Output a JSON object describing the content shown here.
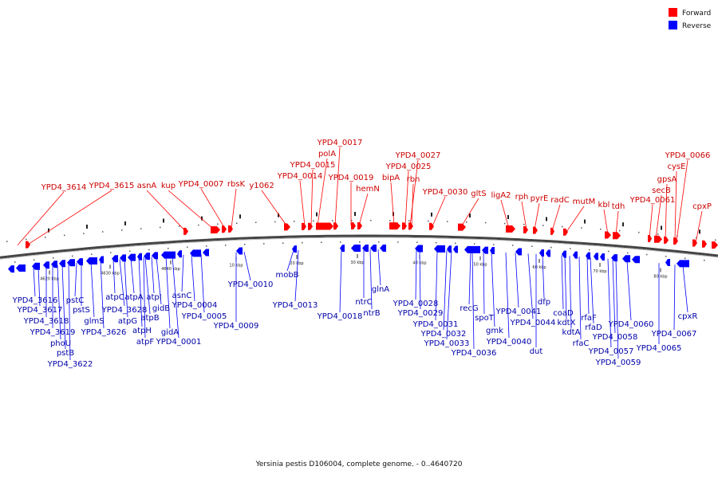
{
  "caption": "Yersinia pestis D106004, complete genome. - 0..4640720",
  "legend": [
    {
      "label": "Forward",
      "color": "#ff0000"
    },
    {
      "label": "Reverse",
      "color": "#0000ff"
    }
  ],
  "colors": {
    "forward": "#ff0000",
    "reverse": "#0000ff",
    "backbone": "#777777",
    "forward_label": "#cc0000",
    "reverse_label": "#0000aa"
  },
  "scale_ticks": [
    "4620 kbp",
    "4630 kbp",
    "4640 kbp",
    "10 kbp",
    "20 kbp",
    "30 kbp",
    "40 kbp",
    "50 kbp",
    "60 kbp",
    "70 kbp",
    "80 kbp"
  ],
  "forward_labels": [
    "YPD4_3614",
    "YPD4_3615",
    "asnA",
    "kup",
    "YPD4_0007",
    "rbsK",
    "y1062",
    "YPD4_0014",
    "YPD4_0015",
    "polA",
    "YPD4_0017",
    "YPD4_0019",
    "hemN",
    "bipA",
    "YPD4_0025",
    "YPD4_0027",
    "rbn",
    "YPD4_0030",
    "gltS",
    "ligA2",
    "rph",
    "pyrE",
    "radC",
    "mutM",
    "kbl",
    "tdh",
    "YPD4_0061",
    "secB",
    "gpsA",
    "cysE",
    "YPD4_0066",
    "cpxP"
  ],
  "reverse_labels": [
    "YPD4_3616",
    "YPD4_3617",
    "YPD4_3618",
    "YPD4_3619",
    "phoU",
    "pstB",
    "YPD4_3622",
    "pstC",
    "pstS",
    "glmS",
    "atpC",
    "YPD4_3626",
    "atpA",
    "YPD4_3628",
    "atpG",
    "atpI",
    "atpB",
    "atpH",
    "atpF",
    "gidB",
    "gidA",
    "YPD4_0001",
    "asnC",
    "YPD4_0004",
    "YPD4_0005",
    "YPD4_0009",
    "YPD4_0010",
    "mobB",
    "YPD4_0013",
    "YPD4_0018",
    "ntrC",
    "ntrB",
    "glnA",
    "YPD4_0028",
    "YPD4_0029",
    "YPD4_0031",
    "YPD4_0032",
    "YPD4_0033",
    "YPD4_0036",
    "recG",
    "spoT",
    "gmk",
    "YPD4_0040",
    "YPD4_0041",
    "YPD4_0044",
    "dut",
    "dfp",
    "coaD",
    "kdtX",
    "kdtA",
    "rfaC",
    "rfaF",
    "rfaD",
    "YPD4_0058",
    "YPD4_0057",
    "YPD4_0059",
    "YPD4_0060",
    "YPD4_0065",
    "cpxR",
    "YPD4_0067"
  ]
}
